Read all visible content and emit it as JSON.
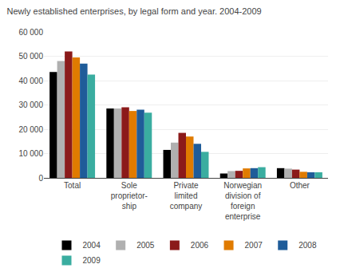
{
  "chart_data": {
    "type": "bar",
    "title": "Newly established enterprises, by legal form and year. 2004-2009",
    "categories": [
      "Total",
      "Sole\nproprietor-\nship",
      "Private\nlimited\ncompany",
      "Norwegian\ndivision of\nforeign\nenterprise",
      "Other"
    ],
    "series": [
      {
        "name": "2004",
        "color": "#000000",
        "values": [
          43500,
          28500,
          11500,
          1800,
          4000
        ]
      },
      {
        "name": "2005",
        "color": "#b0b0b0",
        "values": [
          48000,
          28500,
          14500,
          2800,
          3800
        ]
      },
      {
        "name": "2006",
        "color": "#8b1a1a",
        "values": [
          52000,
          29000,
          18500,
          2900,
          3400
        ]
      },
      {
        "name": "2007",
        "color": "#e07b00",
        "values": [
          49500,
          27500,
          17000,
          3900,
          2500
        ]
      },
      {
        "name": "2008",
        "color": "#1f5c99",
        "values": [
          47000,
          28000,
          14000,
          4000,
          2300
        ]
      },
      {
        "name": "2009",
        "color": "#3aada0",
        "values": [
          42500,
          26800,
          10700,
          4400,
          2300
        ]
      }
    ],
    "ylim": [
      0,
      60000
    ],
    "yticks": [
      0,
      {
        "value": 10000,
        "label": "10 000"
      },
      {
        "value": 20000,
        "label": "20 000"
      },
      {
        "value": 30000,
        "label": "30 000"
      },
      {
        "value": 40000,
        "label": "40 000"
      },
      {
        "value": 50000,
        "label": "50 000"
      },
      {
        "value": 60000,
        "label": "60 000"
      }
    ],
    "grid": true,
    "legend": "bottom"
  }
}
